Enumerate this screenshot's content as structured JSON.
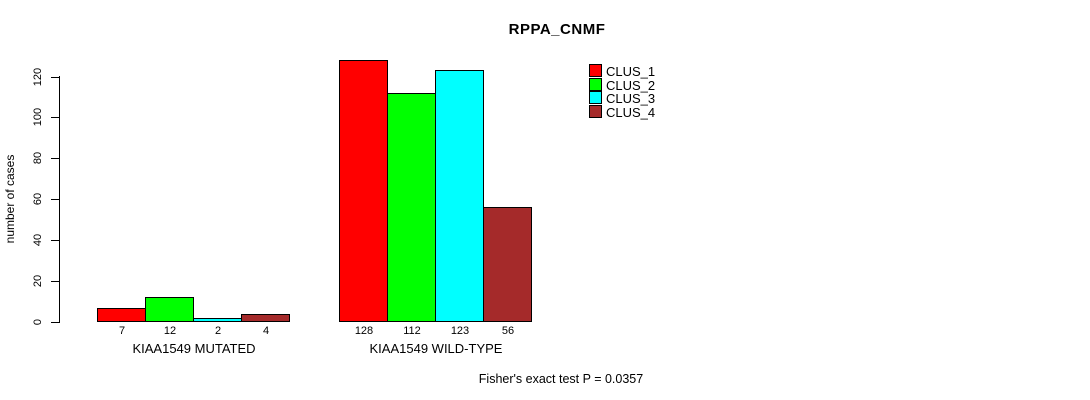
{
  "title": "RPPA_CNMF",
  "ylabel": "number of cases",
  "annotation": "Fisher's exact test P = 0.0357",
  "legend": [
    {
      "label": "CLUS_1",
      "color": "#FF0000"
    },
    {
      "label": "CLUS_2",
      "color": "#00FF00"
    },
    {
      "label": "CLUS_3",
      "color": "#00FFFF"
    },
    {
      "label": "CLUS_4",
      "color": "#A52A2A"
    }
  ],
  "chart_data": {
    "type": "bar",
    "title": "RPPA_CNMF",
    "ylabel": "number of cases",
    "xlabel": "",
    "categories": [
      "KIAA1549 MUTATED",
      "KIAA1549 WILD-TYPE"
    ],
    "series": [
      {
        "name": "CLUS_1",
        "color": "#FF0000",
        "values": [
          7,
          128
        ]
      },
      {
        "name": "CLUS_2",
        "color": "#00FF00",
        "values": [
          12,
          112
        ]
      },
      {
        "name": "CLUS_3",
        "color": "#00FFFF",
        "values": [
          2,
          123
        ]
      },
      {
        "name": "CLUS_4",
        "color": "#A52A2A",
        "values": [
          4,
          56
        ]
      }
    ],
    "bar_labels": [
      [
        7,
        12,
        2,
        4
      ],
      [
        128,
        112,
        123,
        56
      ]
    ],
    "yticks": [
      0,
      20,
      40,
      60,
      80,
      100,
      120
    ],
    "ylim": [
      0,
      128
    ],
    "grid": false,
    "legend_position": "top-right",
    "annotation": "Fisher's exact test P = 0.0357"
  }
}
